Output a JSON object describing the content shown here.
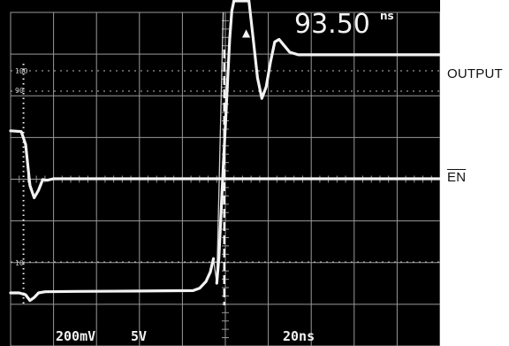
{
  "chart_data": {
    "type": "line",
    "title": "",
    "readout": {
      "value": "93.50",
      "unit": "ns"
    },
    "scale": {
      "ch1": "200mV",
      "ch2": "5V",
      "time": "20ns"
    },
    "graticule_labels": [
      "100",
      "90",
      "10"
    ],
    "x_unit": "ns",
    "x_per_division": 20,
    "xlim": [
      0,
      200
    ],
    "grid": true,
    "cursors": [
      {
        "name": "cursor-1",
        "x": 6
      },
      {
        "name": "cursor-2",
        "x": 99.5
      }
    ],
    "series": [
      {
        "name": "OUTPUT",
        "unit": "mV",
        "points": [
          [
            96,
            -1200
          ],
          [
            97,
            -1000
          ],
          [
            98,
            -660
          ],
          [
            99,
            -300
          ],
          [
            100,
            20
          ],
          [
            101,
            360
          ],
          [
            102,
            700
          ],
          [
            103,
            920
          ],
          [
            104,
            1000
          ],
          [
            108,
            1000
          ],
          [
            111,
            1000
          ],
          [
            113,
            700
          ],
          [
            115,
            400
          ],
          [
            117,
            240
          ],
          [
            119,
            330
          ],
          [
            121,
            520
          ],
          [
            123,
            680
          ],
          [
            125,
            700
          ],
          [
            127,
            660
          ],
          [
            130,
            600
          ],
          [
            134,
            580
          ],
          [
            140,
            580
          ],
          [
            200,
            580
          ]
        ]
      },
      {
        "name": "EN",
        "unit": "V",
        "points": [
          [
            0,
            1.26
          ],
          [
            5,
            1.24
          ],
          [
            7,
            0.9
          ],
          [
            9,
            -0.18
          ],
          [
            11,
            -0.5
          ],
          [
            13,
            -0.3
          ],
          [
            15,
            -0.02
          ],
          [
            17,
            -0.04
          ],
          [
            20,
            0
          ],
          [
            200,
            0
          ]
        ]
      },
      {
        "name": "",
        "unit": "V",
        "points": [
          [
            0,
            -3.0
          ],
          [
            4,
            -3.0
          ],
          [
            7,
            -3.05
          ],
          [
            9,
            -3.2
          ],
          [
            11,
            -3.12
          ],
          [
            13,
            -3.0
          ],
          [
            16,
            -2.97
          ],
          [
            30,
            -2.96
          ],
          [
            60,
            -2.95
          ],
          [
            85,
            -2.94
          ],
          [
            88,
            -2.88
          ],
          [
            91,
            -2.7
          ],
          [
            93,
            -2.45
          ],
          [
            94.5,
            -2.1
          ]
        ]
      }
    ]
  },
  "labels": {
    "output": "OUTPUT",
    "en": "EN"
  },
  "colors": {
    "background": "#000000",
    "trace": "#f2f2f2",
    "grid": "#9a9a9a",
    "label_text": "#111111"
  }
}
